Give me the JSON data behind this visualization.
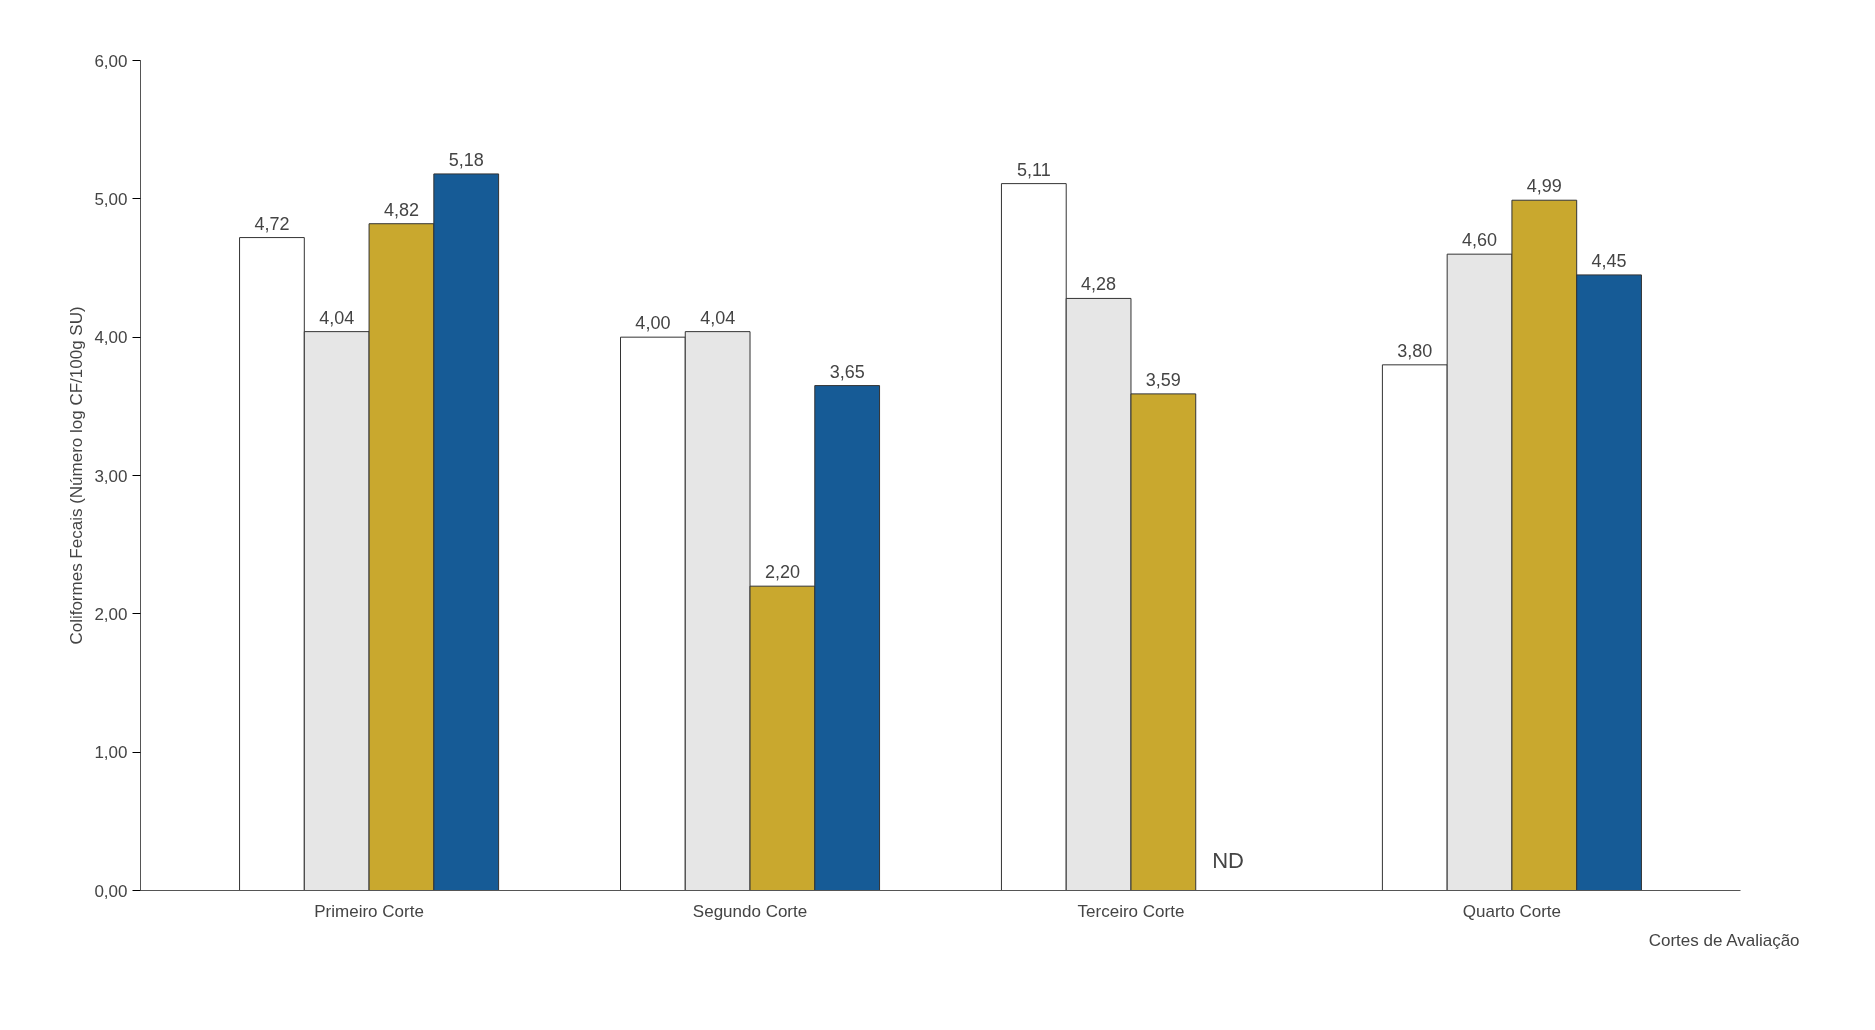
{
  "chart_data": {
    "type": "bar",
    "ylabel": "Coliformes Fecais (Número log CF/100g SU)",
    "xlabel": "Cortes de Avaliação",
    "categories": [
      "Primeiro Corte",
      "Segundo Corte",
      "Terceiro Corte",
      "Quarto Corte"
    ],
    "series": [
      {
        "color": "#ffffff",
        "values": [
          4.72,
          4.0,
          5.11,
          3.8
        ],
        "value_labels": [
          "4,72",
          "4,00",
          "5,11",
          "3,80"
        ]
      },
      {
        "color": "#e6e6e6",
        "values": [
          4.04,
          4.04,
          4.28,
          4.6
        ],
        "value_labels": [
          "4,04",
          "4,04",
          "4,28",
          "4,60"
        ]
      },
      {
        "color": "#c9a82e",
        "values": [
          4.82,
          2.2,
          3.59,
          4.99
        ],
        "value_labels": [
          "4,82",
          "2,20",
          "3,59",
          "4,99"
        ]
      },
      {
        "color": "#165b96",
        "values": [
          5.18,
          3.65,
          null,
          4.45
        ],
        "value_labels": [
          "5,18",
          "3,65",
          null,
          "4,45"
        ]
      }
    ],
    "ylim": [
      0,
      6
    ],
    "yticks": [
      {
        "value": 0,
        "label": "0,00"
      },
      {
        "value": 1,
        "label": "1,00"
      },
      {
        "value": 2,
        "label": "2,00"
      },
      {
        "value": 3,
        "label": "3,00"
      },
      {
        "value": 4,
        "label": "4,00"
      },
      {
        "value": 5,
        "label": "5,00"
      },
      {
        "value": 6,
        "label": "6,00"
      }
    ],
    "annotations": [
      "ND"
    ],
    "grid": false
  }
}
